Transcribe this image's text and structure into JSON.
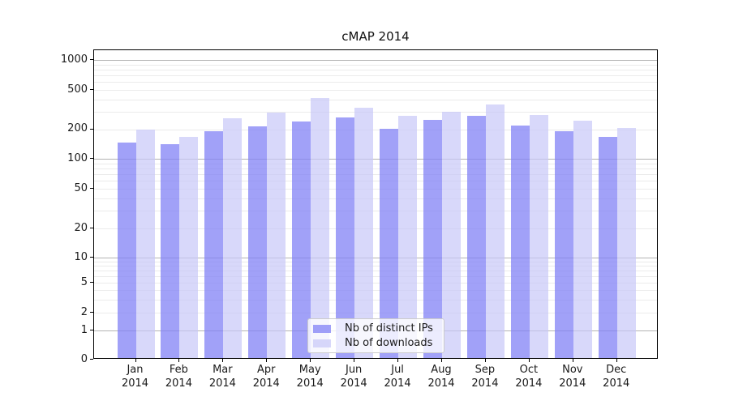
{
  "chart_data": {
    "type": "bar",
    "title": "cMAP 2014",
    "x_months": [
      "Jan",
      "Feb",
      "Mar",
      "Apr",
      "May",
      "Jun",
      "Jul",
      "Aug",
      "Sep",
      "Oct",
      "Nov",
      "Dec"
    ],
    "x_year_label": "2014",
    "series": [
      {
        "name": "Nb of distinct IPs",
        "color": "rgba(130,130,245,0.75)",
        "values": [
          140,
          135,
          185,
          205,
          230,
          255,
          195,
          240,
          265,
          210,
          185,
          160
        ]
      },
      {
        "name": "Nb of downloads",
        "color": "rgba(200,200,248,0.70)",
        "values": [
          190,
          160,
          250,
          285,
          395,
          320,
          265,
          290,
          340,
          270,
          235,
          200
        ]
      }
    ],
    "y_scale": "symlog",
    "y_ticks": [
      0,
      1,
      2,
      5,
      10,
      20,
      50,
      100,
      200,
      500,
      1000
    ],
    "y_major_gridlines": [
      1,
      10,
      100,
      1000
    ],
    "y_minor_gridlines": [
      2,
      3,
      4,
      5,
      6,
      7,
      8,
      9,
      20,
      30,
      40,
      50,
      60,
      70,
      80,
      90,
      200,
      300,
      400,
      500,
      600,
      700,
      800,
      900
    ],
    "ylim": [
      0,
      1100
    ],
    "grid": true,
    "legend_position": "lower center",
    "colors": {
      "major_grid": "#b3b3b3",
      "minor_grid": "#ebebeb",
      "axis": "#000000",
      "text": "#1a1a1a",
      "legend_border": "#cccccc",
      "legend_bg": "rgba(255,255,255,0.8)"
    }
  }
}
